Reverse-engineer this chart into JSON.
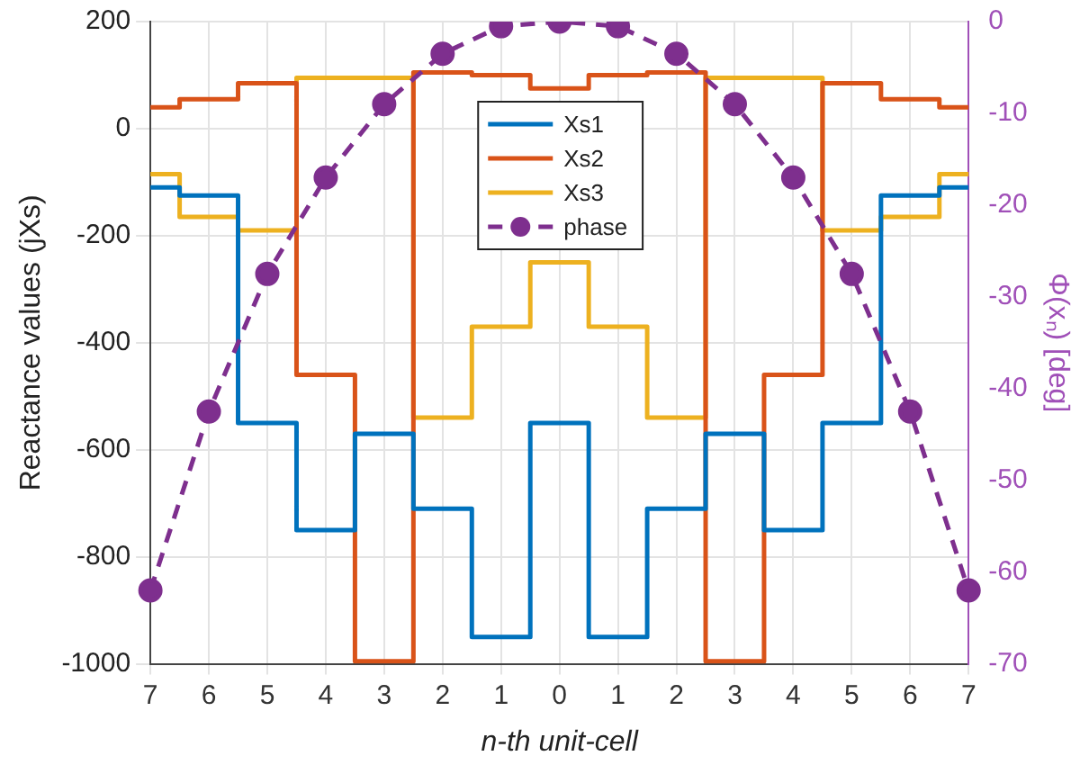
{
  "chart_data": {
    "type": "step",
    "xlabel": "n-th unit-cell",
    "ylabel": "Reactance values (jXs)",
    "y2label": "Φ(xₙ) [deg]",
    "categories": [
      "7",
      "6",
      "5",
      "4",
      "3",
      "2",
      "1",
      "0",
      "1",
      "2",
      "3",
      "4",
      "5",
      "6",
      "7"
    ],
    "series": [
      {
        "name": "Xs1",
        "color": "#0072bd",
        "values": [
          -110,
          -125,
          -550,
          -750,
          -570,
          -710,
          -950,
          -550,
          -950,
          -710,
          -570,
          -750,
          -550,
          -125,
          -110
        ]
      },
      {
        "name": "Xs2",
        "color": "#d95319",
        "values": [
          40,
          55,
          85,
          -460,
          -995,
          105,
          100,
          75,
          100,
          105,
          -995,
          -460,
          85,
          55,
          40
        ]
      },
      {
        "name": "Xs3",
        "color": "#edb120",
        "values": [
          -85,
          -165,
          -190,
          95,
          95,
          -540,
          -370,
          -250,
          -370,
          -540,
          95,
          95,
          -190,
          -165,
          -85
        ]
      },
      {
        "name": "phase",
        "type": "line",
        "axis": "y2",
        "color": "#7e2f8e",
        "marker": "circle",
        "line_style": "dashed",
        "values": [
          -62,
          -42.5,
          -27.5,
          -17,
          -9,
          -3.5,
          -0.5,
          0,
          -0.5,
          -3.5,
          -9,
          -17,
          -27.5,
          -42.5,
          -62
        ]
      }
    ],
    "ylim": [
      -1000,
      200
    ],
    "yticks": [
      -1000,
      -800,
      -600,
      -400,
      -200,
      0,
      200
    ],
    "y2lim": [
      -70,
      0
    ],
    "y2ticks": [
      -70,
      -60,
      -50,
      -40,
      -30,
      -20,
      -10,
      0
    ],
    "grid": true,
    "legend": "top"
  }
}
